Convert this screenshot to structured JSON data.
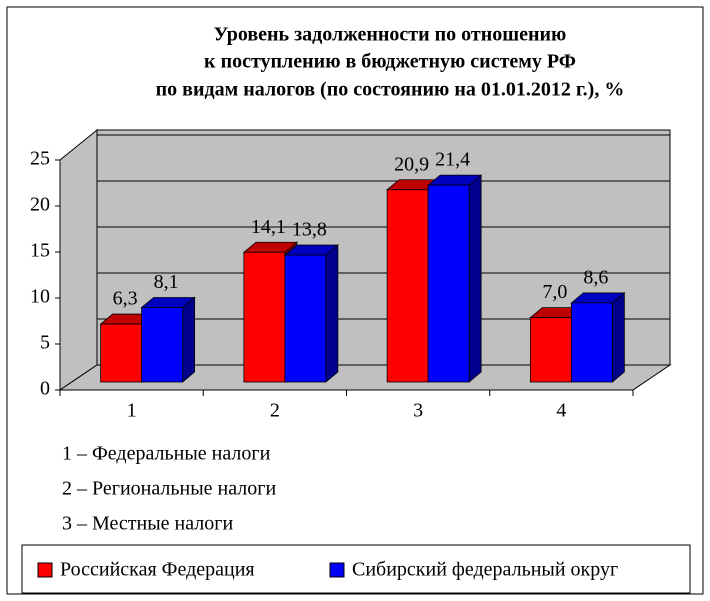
{
  "chart_data": {
    "type": "bar3d",
    "title": [
      "Уровень задолженности по отношению",
      "к поступлению в бюджетную систему РФ",
      "по видам налогов (по состоянию на 01.01.2012 г.), %"
    ],
    "categories": [
      "1",
      "2",
      "3",
      "4"
    ],
    "series": [
      {
        "name": "Российская Федерация",
        "color": "#ff0000",
        "values": [
          6.3,
          14.1,
          20.9,
          7.0
        ],
        "value_labels": [
          "6,3",
          "14,1",
          "20,9",
          "7,0"
        ]
      },
      {
        "name": "Сибирский федеральный округ",
        "color": "#0000ff",
        "values": [
          8.1,
          13.8,
          21.4,
          8.6
        ],
        "value_labels": [
          "8,1",
          "13,8",
          "21,4",
          "8,6"
        ]
      }
    ],
    "notes": [
      "1 – Федеральные налоги",
      "2 – Региональные налоги",
      "3 – Местные налоги"
    ],
    "ylim": [
      0,
      25
    ],
    "yticks": [
      0,
      5,
      10,
      15,
      20,
      25
    ],
    "grid": true,
    "legend": "bottom"
  }
}
